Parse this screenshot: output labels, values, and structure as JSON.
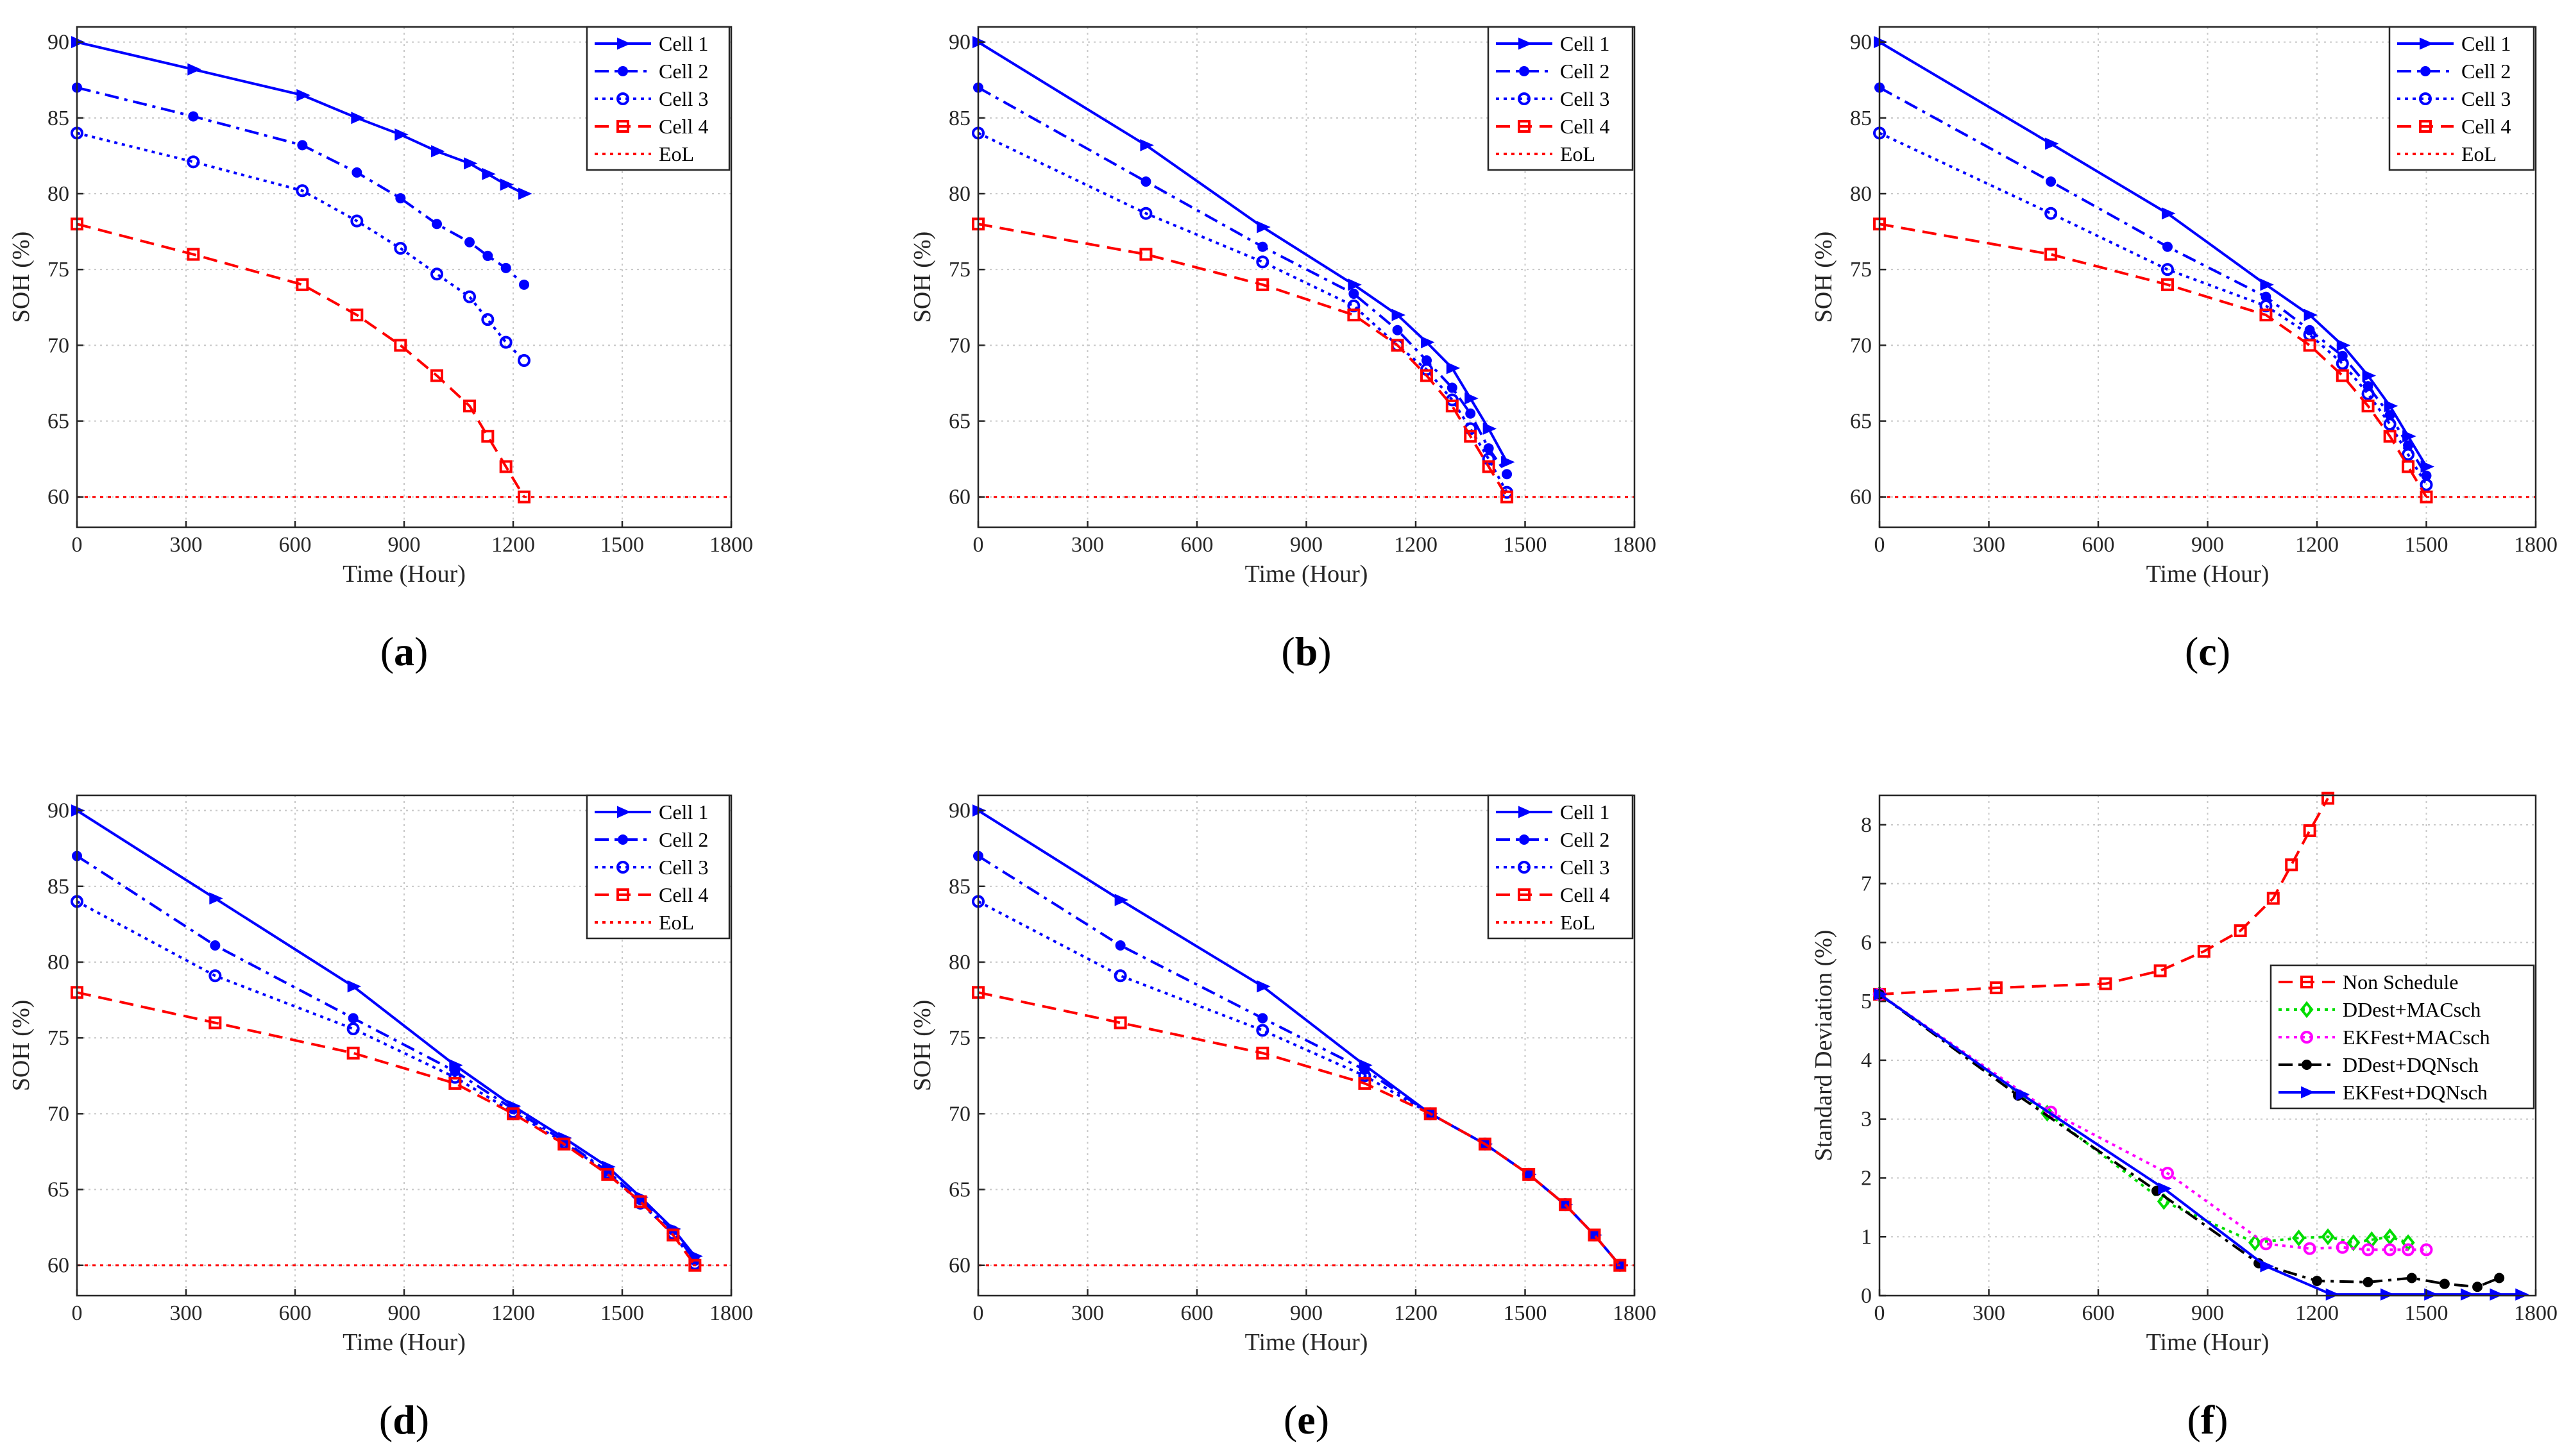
{
  "colors": {
    "blue": "#0000ff",
    "red": "#ff0000",
    "green": "#00dd00",
    "magenta": "#ff00ff",
    "black": "#000000",
    "grid": "#c8c8c8"
  },
  "chart_data": [
    {
      "panel_label": "(a)",
      "type": "line",
      "xlabel": "Time (Hour)",
      "ylabel": "SOH (%)",
      "xlim": [
        0,
        1800
      ],
      "ylim": [
        58,
        91
      ],
      "xticks": [
        0,
        300,
        600,
        900,
        1200,
        1500,
        1800
      ],
      "yticks": [
        60,
        65,
        70,
        75,
        80,
        85,
        90
      ],
      "grid": true,
      "legend_position": "top-right",
      "series": [
        {
          "name": "Cell 1",
          "color": "blue",
          "dash": "solid",
          "marker": "triangle-right",
          "x": [
            0,
            320,
            620,
            770,
            890,
            990,
            1080,
            1130,
            1180,
            1230
          ],
          "y": [
            90,
            88.2,
            86.5,
            85,
            83.9,
            82.8,
            82,
            81.3,
            80.6,
            80
          ]
        },
        {
          "name": "Cell 2",
          "color": "blue",
          "dash": "dashdot",
          "marker": "dot",
          "x": [
            0,
            320,
            620,
            770,
            890,
            990,
            1080,
            1130,
            1180,
            1230
          ],
          "y": [
            87,
            85.1,
            83.2,
            81.4,
            79.7,
            78,
            76.8,
            75.9,
            75.1,
            74
          ]
        },
        {
          "name": "Cell 3",
          "color": "blue",
          "dash": "dotted",
          "marker": "circle",
          "x": [
            0,
            320,
            620,
            770,
            890,
            990,
            1080,
            1130,
            1180,
            1230
          ],
          "y": [
            84,
            82.1,
            80.2,
            78.2,
            76.4,
            74.7,
            73.2,
            71.7,
            70.2,
            69
          ]
        },
        {
          "name": "Cell 4",
          "color": "red",
          "dash": "dashed",
          "marker": "square",
          "x": [
            0,
            320,
            620,
            770,
            890,
            990,
            1080,
            1130,
            1180,
            1230
          ],
          "y": [
            78,
            76,
            74,
            72,
            70,
            68,
            66,
            64,
            62,
            60
          ]
        },
        {
          "name": "EoL",
          "color": "red",
          "dash": "dotted",
          "marker": "none",
          "x": [
            0,
            1800
          ],
          "y": [
            60,
            60
          ]
        }
      ]
    },
    {
      "panel_label": "(b)",
      "type": "line",
      "xlabel": "Time (Hour)",
      "ylabel": "SOH (%)",
      "xlim": [
        0,
        1800
      ],
      "ylim": [
        58,
        91
      ],
      "xticks": [
        0,
        300,
        600,
        900,
        1200,
        1500,
        1800
      ],
      "yticks": [
        60,
        65,
        70,
        75,
        80,
        85,
        90
      ],
      "grid": true,
      "legend_position": "top-right",
      "series": [
        {
          "name": "Cell 1",
          "color": "blue",
          "dash": "solid",
          "marker": "triangle-right",
          "x": [
            0,
            460,
            780,
            1030,
            1150,
            1230,
            1300,
            1350,
            1400,
            1450
          ],
          "y": [
            90,
            83.2,
            77.8,
            74,
            72,
            70.2,
            68.5,
            66.5,
            64.5,
            62.3
          ]
        },
        {
          "name": "Cell 2",
          "color": "blue",
          "dash": "dashdot",
          "marker": "dot",
          "x": [
            0,
            460,
            780,
            1030,
            1150,
            1230,
            1300,
            1350,
            1400,
            1450
          ],
          "y": [
            87,
            80.8,
            76.5,
            73.4,
            71,
            69,
            67.2,
            65.5,
            63.2,
            61.5
          ]
        },
        {
          "name": "Cell 3",
          "color": "blue",
          "dash": "dotted",
          "marker": "circle",
          "x": [
            0,
            460,
            780,
            1030,
            1150,
            1230,
            1300,
            1350,
            1400,
            1450
          ],
          "y": [
            84,
            78.7,
            75.5,
            72.6,
            70,
            68.4,
            66.4,
            64.5,
            62.5,
            60.3
          ]
        },
        {
          "name": "Cell 4",
          "color": "red",
          "dash": "dashed",
          "marker": "square",
          "x": [
            0,
            460,
            780,
            1030,
            1150,
            1230,
            1300,
            1350,
            1400,
            1450
          ],
          "y": [
            78,
            76,
            74,
            72,
            70,
            68,
            66,
            64,
            62,
            60
          ]
        },
        {
          "name": "EoL",
          "color": "red",
          "dash": "dotted",
          "marker": "none",
          "x": [
            0,
            1800
          ],
          "y": [
            60,
            60
          ]
        }
      ]
    },
    {
      "panel_label": "(c)",
      "type": "line",
      "xlabel": "Time (Hour)",
      "ylabel": "SOH (%)",
      "xlim": [
        0,
        1800
      ],
      "ylim": [
        58,
        91
      ],
      "xticks": [
        0,
        300,
        600,
        900,
        1200,
        1500,
        1800
      ],
      "yticks": [
        60,
        65,
        70,
        75,
        80,
        85,
        90
      ],
      "grid": true,
      "legend_position": "top-right",
      "series": [
        {
          "name": "Cell 1",
          "color": "blue",
          "dash": "solid",
          "marker": "triangle-right",
          "x": [
            0,
            470,
            790,
            1060,
            1180,
            1270,
            1340,
            1400,
            1450,
            1500
          ],
          "y": [
            90,
            83.3,
            78.7,
            74,
            72,
            70,
            68,
            66,
            64,
            62
          ]
        },
        {
          "name": "Cell 2",
          "color": "blue",
          "dash": "dashdot",
          "marker": "dot",
          "x": [
            0,
            470,
            790,
            1060,
            1180,
            1270,
            1340,
            1400,
            1450,
            1500
          ],
          "y": [
            87,
            80.8,
            76.5,
            73.2,
            71,
            69.3,
            67.3,
            65.4,
            63.4,
            61.4
          ]
        },
        {
          "name": "Cell 3",
          "color": "blue",
          "dash": "dotted",
          "marker": "circle",
          "x": [
            0,
            470,
            790,
            1060,
            1180,
            1270,
            1340,
            1400,
            1450,
            1500
          ],
          "y": [
            84,
            78.7,
            75,
            72.6,
            70.7,
            68.8,
            66.8,
            64.8,
            62.8,
            60.8
          ]
        },
        {
          "name": "Cell 4",
          "color": "red",
          "dash": "dashed",
          "marker": "square",
          "x": [
            0,
            470,
            790,
            1060,
            1180,
            1270,
            1340,
            1400,
            1450,
            1500
          ],
          "y": [
            78,
            76,
            74,
            72,
            70,
            68,
            66,
            64,
            62,
            60
          ]
        },
        {
          "name": "EoL",
          "color": "red",
          "dash": "dotted",
          "marker": "none",
          "x": [
            0,
            1800
          ],
          "y": [
            60,
            60
          ]
        }
      ]
    },
    {
      "panel_label": "(d)",
      "type": "line",
      "xlabel": "Time (Hour)",
      "ylabel": "SOH (%)",
      "xlim": [
        0,
        1800
      ],
      "ylim": [
        58,
        91
      ],
      "xticks": [
        0,
        300,
        600,
        900,
        1200,
        1500,
        1800
      ],
      "yticks": [
        60,
        65,
        70,
        75,
        80,
        85,
        90
      ],
      "grid": true,
      "legend_position": "top-right",
      "series": [
        {
          "name": "Cell 1",
          "color": "blue",
          "dash": "solid",
          "marker": "triangle-right",
          "x": [
            0,
            380,
            760,
            1040,
            1200,
            1340,
            1460,
            1550,
            1640,
            1700
          ],
          "y": [
            90,
            84.2,
            78.4,
            73.2,
            70.5,
            68.4,
            66.5,
            64.5,
            62.4,
            60.6
          ]
        },
        {
          "name": "Cell 2",
          "color": "blue",
          "dash": "dashdot",
          "marker": "dot",
          "x": [
            0,
            380,
            760,
            1040,
            1200,
            1340,
            1460,
            1550,
            1640,
            1700
          ],
          "y": [
            87,
            81.1,
            76.3,
            72.8,
            70.3,
            68.2,
            66.2,
            64.3,
            62.3,
            60.3
          ]
        },
        {
          "name": "Cell 3",
          "color": "blue",
          "dash": "dotted",
          "marker": "circle",
          "x": [
            0,
            380,
            760,
            1040,
            1200,
            1340,
            1460,
            1550,
            1640,
            1700
          ],
          "y": [
            84,
            79.1,
            75.6,
            72.4,
            70.1,
            68.1,
            66.1,
            64.1,
            62.1,
            60.1
          ]
        },
        {
          "name": "Cell 4",
          "color": "red",
          "dash": "dashed",
          "marker": "square",
          "x": [
            0,
            380,
            760,
            1040,
            1200,
            1340,
            1460,
            1550,
            1640,
            1700
          ],
          "y": [
            78,
            76,
            74,
            72,
            70,
            68,
            66,
            64.2,
            62,
            60
          ]
        },
        {
          "name": "EoL",
          "color": "red",
          "dash": "dotted",
          "marker": "none",
          "x": [
            0,
            1800
          ],
          "y": [
            60,
            60
          ]
        }
      ]
    },
    {
      "panel_label": "(e)",
      "type": "line",
      "xlabel": "Time (Hour)",
      "ylabel": "SOH (%)",
      "xlim": [
        0,
        1800
      ],
      "ylim": [
        58,
        91
      ],
      "xticks": [
        0,
        300,
        600,
        900,
        1200,
        1500,
        1800
      ],
      "yticks": [
        60,
        65,
        70,
        75,
        80,
        85,
        90
      ],
      "grid": true,
      "legend_position": "top-right",
      "series": [
        {
          "name": "Cell 1",
          "color": "blue",
          "dash": "solid",
          "marker": "triangle-right",
          "x": [
            0,
            390,
            780,
            1060,
            1240,
            1390,
            1510,
            1610,
            1690,
            1760
          ],
          "y": [
            90,
            84.1,
            78.4,
            73.2,
            70,
            68,
            66,
            64,
            62,
            60
          ]
        },
        {
          "name": "Cell 2",
          "color": "blue",
          "dash": "dashdot",
          "marker": "dot",
          "x": [
            0,
            390,
            780,
            1060,
            1240,
            1390,
            1510,
            1610,
            1690,
            1760
          ],
          "y": [
            87,
            81.1,
            76.3,
            72.9,
            70,
            68,
            66,
            64,
            62,
            60
          ]
        },
        {
          "name": "Cell 3",
          "color": "blue",
          "dash": "dotted",
          "marker": "circle",
          "x": [
            0,
            390,
            780,
            1060,
            1240,
            1390,
            1510,
            1610,
            1690,
            1760
          ],
          "y": [
            84,
            79.1,
            75.5,
            72.5,
            70,
            68,
            66,
            64,
            62,
            60
          ]
        },
        {
          "name": "Cell 4",
          "color": "red",
          "dash": "dashed",
          "marker": "square",
          "x": [
            0,
            390,
            780,
            1060,
            1240,
            1390,
            1510,
            1610,
            1690,
            1760
          ],
          "y": [
            78,
            76,
            74,
            72,
            70,
            68,
            66,
            64,
            62,
            60
          ]
        },
        {
          "name": "EoL",
          "color": "red",
          "dash": "dotted",
          "marker": "none",
          "x": [
            0,
            1800
          ],
          "y": [
            60,
            60
          ]
        }
      ]
    },
    {
      "panel_label": "(f)",
      "type": "line",
      "xlabel": "Time (Hour)",
      "ylabel": "Standard Deviation (%)",
      "xlim": [
        0,
        1800
      ],
      "ylim": [
        0,
        8.5
      ],
      "xticks": [
        0,
        300,
        600,
        900,
        1200,
        1500,
        1800
      ],
      "yticks": [
        0,
        1,
        2,
        3,
        4,
        5,
        6,
        7,
        8
      ],
      "grid": true,
      "legend_position": "middle-right",
      "series": [
        {
          "name": "Non Schedule",
          "color": "red",
          "dash": "dashed",
          "marker": "square",
          "x": [
            0,
            320,
            620,
            770,
            890,
            990,
            1080,
            1130,
            1180,
            1230
          ],
          "y": [
            5.12,
            5.23,
            5.3,
            5.52,
            5.85,
            6.2,
            6.75,
            7.32,
            7.9,
            8.45
          ]
        },
        {
          "name": "DDest+MACsch",
          "color": "green",
          "dash": "dotted",
          "marker": "diamond",
          "x": [
            0,
            460,
            780,
            1030,
            1150,
            1230,
            1300,
            1350,
            1400,
            1450
          ],
          "y": [
            5.12,
            3.1,
            1.6,
            0.9,
            0.98,
            1.0,
            0.9,
            0.95,
            1.0,
            0.9
          ]
        },
        {
          "name": "EKFest+MACsch",
          "color": "magenta",
          "dash": "dotted",
          "marker": "circle",
          "x": [
            0,
            470,
            790,
            1060,
            1180,
            1270,
            1340,
            1400,
            1450,
            1500
          ],
          "y": [
            5.12,
            3.12,
            2.08,
            0.88,
            0.8,
            0.82,
            0.78,
            0.78,
            0.78,
            0.78
          ]
        },
        {
          "name": "DDest+DQNsch",
          "color": "black",
          "dash": "dashdot",
          "marker": "dot",
          "x": [
            0,
            380,
            760,
            1040,
            1200,
            1340,
            1460,
            1550,
            1640,
            1700
          ],
          "y": [
            5.12,
            3.4,
            1.78,
            0.55,
            0.25,
            0.23,
            0.3,
            0.2,
            0.15,
            0.3
          ]
        },
        {
          "name": "EKFest+DQNsch",
          "color": "blue",
          "dash": "solid",
          "marker": "triangle-right",
          "x": [
            0,
            390,
            780,
            1060,
            1240,
            1390,
            1510,
            1610,
            1690,
            1760
          ],
          "y": [
            5.12,
            3.42,
            1.82,
            0.5,
            0.02,
            0.02,
            0.02,
            0.02,
            0.02,
            0.02
          ]
        }
      ]
    }
  ]
}
